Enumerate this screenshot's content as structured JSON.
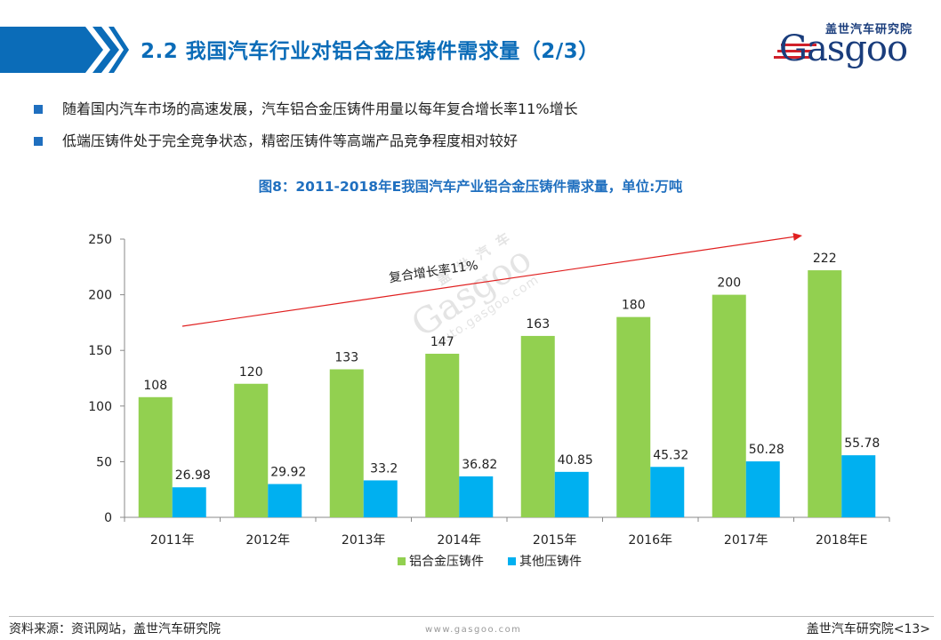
{
  "header": {
    "title": "2.2 我国汽车行业对铝合金压铸件需求量（2/3）",
    "logo_cn": "盖世汽车研究院",
    "logo_en": "Gasgoo",
    "brand_color": "#1f6fbf"
  },
  "bullets": [
    {
      "text": "随着国内汽车市场的高速发展，汽车铝合金压铸件用量以每年复合增长率11%增长"
    },
    {
      "text": "低端压铸件处于完全竞争状态，精密压铸件等高端产品竞争程度相对较好"
    }
  ],
  "watermark": {
    "cn": "盖 世 汽 车",
    "en": "Gasgoo",
    "url": "auto.gasgoo.com"
  },
  "chart_data": {
    "type": "bar",
    "title": "图8：2011-2018年E我国汽车产业铝合金压铸件需求量，单位:万吨",
    "categories": [
      "2011年",
      "2012年",
      "2013年",
      "2014年",
      "2015年",
      "2016年",
      "2017年",
      "2018年E"
    ],
    "series": [
      {
        "name": "铝合金压铸件",
        "color": "#92d050",
        "values": [
          108,
          120,
          133,
          147,
          163,
          180,
          200,
          222
        ],
        "labels": [
          "108",
          "120",
          "133",
          "147",
          "163",
          "180",
          "200",
          "222"
        ]
      },
      {
        "name": "其他压铸件",
        "color": "#00b0f0",
        "values": [
          26.98,
          29.92,
          33.2,
          36.82,
          40.85,
          45.32,
          50.28,
          55.78
        ],
        "labels": [
          "26.98",
          "29.92",
          "33.2",
          "36.82",
          "40.85",
          "45.32",
          "50.28",
          "55.78"
        ]
      }
    ],
    "ylim": [
      0,
      250
    ],
    "yticks": [
      0,
      50,
      100,
      150,
      200,
      250
    ],
    "grid": false,
    "legend": "bottom",
    "annotation": {
      "text": "复合增长率11%",
      "arrow_color": "#e02020"
    }
  },
  "footer": {
    "source": "资料来源：资讯网站，盖世汽车研究院",
    "site": "www.gasgoo.com",
    "page": "盖世汽车研究院<13>"
  }
}
